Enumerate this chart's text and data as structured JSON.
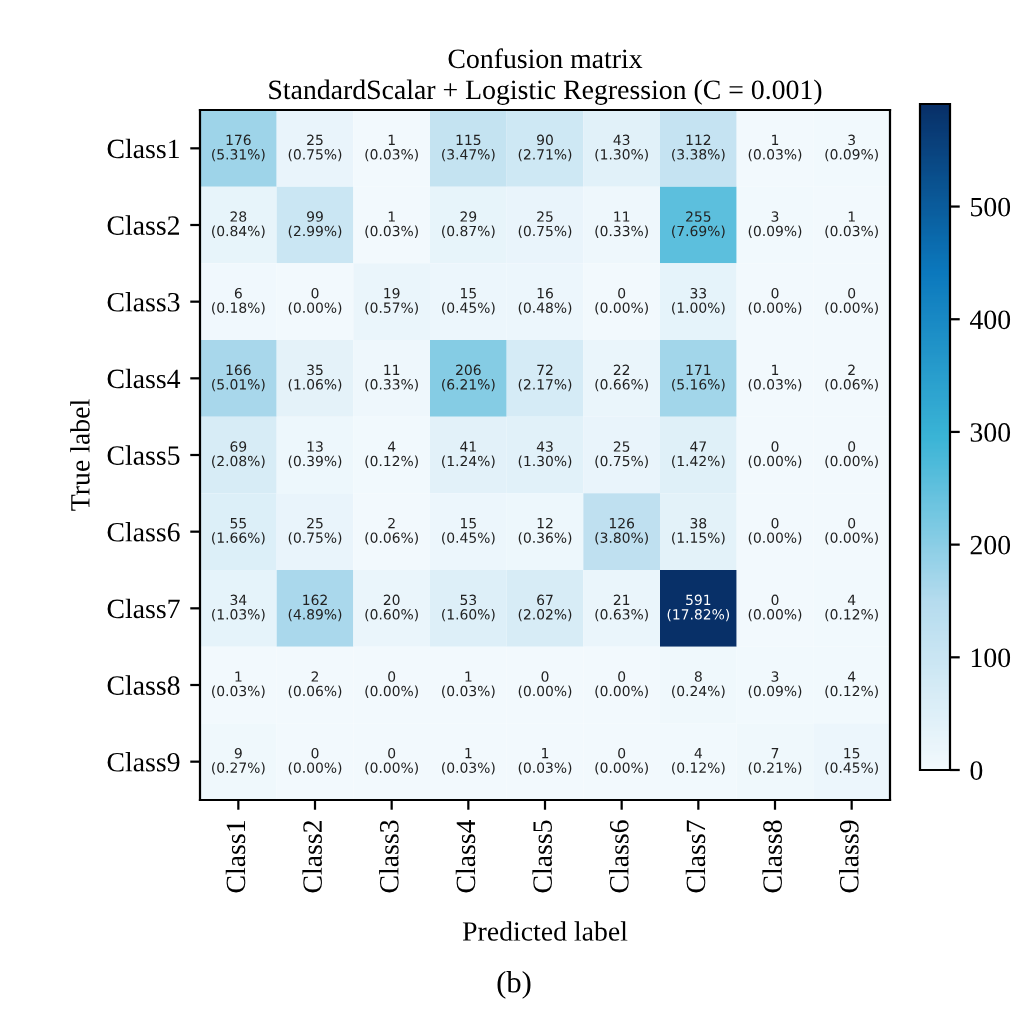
{
  "chart_data": {
    "type": "heatmap",
    "title": "Confusion matrix",
    "subtitle": "StandardScalar + Logistic Regression (C = 0.001)",
    "xlabel": "Predicted label",
    "ylabel": "True label",
    "categories": [
      "Class1",
      "Class2",
      "Class3",
      "Class4",
      "Class5",
      "Class6",
      "Class7",
      "Class8",
      "Class9"
    ],
    "y_categories": [
      "Class1",
      "Class2",
      "Class3",
      "Class4",
      "Class5",
      "Class6",
      "Class7",
      "Class8",
      "Class9"
    ],
    "cells": [
      [
        176,
        25,
        1,
        115,
        90,
        43,
        112,
        1,
        3
      ],
      [
        28,
        99,
        1,
        29,
        25,
        11,
        255,
        3,
        1
      ],
      [
        6,
        0,
        19,
        15,
        16,
        0,
        33,
        0,
        0
      ],
      [
        166,
        35,
        11,
        206,
        72,
        22,
        171,
        1,
        2
      ],
      [
        69,
        13,
        4,
        41,
        43,
        25,
        47,
        0,
        0
      ],
      [
        55,
        25,
        2,
        15,
        12,
        126,
        38,
        0,
        0
      ],
      [
        34,
        162,
        20,
        53,
        67,
        21,
        591,
        0,
        4
      ],
      [
        1,
        2,
        0,
        1,
        0,
        0,
        8,
        3,
        4
      ],
      [
        9,
        0,
        0,
        1,
        1,
        0,
        4,
        7,
        15
      ]
    ],
    "cell_labels": [
      [
        "176\n(5.31%)",
        "25\n(0.75%)",
        "1\n(0.03%)",
        "115\n(3.47%)",
        "90\n(2.71%)",
        "43\n(1.30%)",
        "112\n(3.38%)",
        "1\n(0.03%)",
        "3\n(0.09%)"
      ],
      [
        "28\n(0.84%)",
        "99\n(2.99%)",
        "1\n(0.03%)",
        "29\n(0.87%)",
        "25\n(0.75%)",
        "11\n(0.33%)",
        "255\n(7.69%)",
        "3\n(0.09%)",
        "1\n(0.03%)"
      ],
      [
        "6\n(0.18%)",
        "0\n(0.00%)",
        "19\n(0.57%)",
        "15\n(0.45%)",
        "16\n(0.48%)",
        "0\n(0.00%)",
        "33\n(1.00%)",
        "0\n(0.00%)",
        "0\n(0.00%)"
      ],
      [
        "166\n(5.01%)",
        "35\n(1.06%)",
        "11\n(0.33%)",
        "206\n(6.21%)",
        "72\n(2.17%)",
        "22\n(0.66%)",
        "171\n(5.16%)",
        "1\n(0.03%)",
        "2\n(0.06%)"
      ],
      [
        "69\n(2.08%)",
        "13\n(0.39%)",
        "4\n(0.12%)",
        "41\n(1.24%)",
        "43\n(1.30%)",
        "25\n(0.75%)",
        "47\n(1.42%)",
        "0\n(0.00%)",
        "0\n(0.00%)"
      ],
      [
        "55\n(1.66%)",
        "25\n(0.75%)",
        "2\n(0.06%)",
        "15\n(0.45%)",
        "12\n(0.36%)",
        "126\n(3.80%)",
        "38\n(1.15%)",
        "0\n(0.00%)",
        "0\n(0.00%)"
      ],
      [
        "34\n(1.03%)",
        "162\n(4.89%)",
        "20\n(0.60%)",
        "53\n(1.60%)",
        "67\n(2.02%)",
        "21\n(0.63%)",
        "591\n(17.82%)",
        "0\n(0.00%)",
        "4\n(0.12%)"
      ],
      [
        "1\n(0.03%)",
        "2\n(0.06%)",
        "0\n(0.00%)",
        "1\n(0.03%)",
        "0\n(0.00%)",
        "0\n(0.00%)",
        "8\n(0.24%)",
        "3\n(0.09%)",
        "4\n(0.12%)"
      ],
      [
        "9\n(0.27%)",
        "0\n(0.00%)",
        "0\n(0.00%)",
        "1\n(0.03%)",
        "1\n(0.03%)",
        "0\n(0.00%)",
        "4\n(0.12%)",
        "7\n(0.21%)",
        "15\n(0.45%)"
      ]
    ],
    "clim": [
      0,
      591
    ],
    "cticks": [
      0,
      100,
      200,
      300,
      400,
      500
    ],
    "colors": [
      "#f2f9fd",
      "#b6dcee",
      "#3ab4d6",
      "#0b78bd",
      "#083068"
    ],
    "annotations": [
      "(b)"
    ]
  }
}
